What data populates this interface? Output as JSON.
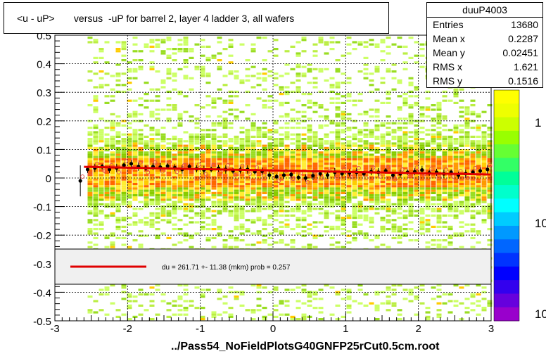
{
  "title": "<u - uP>       versus  -uP for barrel 2, layer 4 ladder 3, all wafers",
  "file_label": "../Pass54_NoFieldPlotsG40GNFP25rCut0.5cm.root",
  "stats": {
    "name": "duuP4003",
    "rows": [
      {
        "label": "Entries",
        "value": "13680"
      },
      {
        "label": "Mean x",
        "value": "0.2287"
      },
      {
        "label": "Mean y",
        "value": "0.02451"
      },
      {
        "label": "RMS x",
        "value": "1.621"
      },
      {
        "label": "RMS y",
        "value": "0.1516"
      }
    ]
  },
  "fit_legend": "du =  261.71 +- 11.38 (mkm) prob = 0.257",
  "colors": {
    "fit_line": "#e00000",
    "profile_points": "#000000",
    "open_markers": "#e05050"
  },
  "chart_data": {
    "type": "heatmap",
    "title": "<u - uP>       versus  -uP for barrel 2, layer 4 ladder 3, all wafers",
    "xlim": [
      -3,
      3
    ],
    "ylim": [
      -0.5,
      0.5
    ],
    "x_ticks": [
      -3,
      -2,
      -1,
      0,
      1,
      2,
      3
    ],
    "x_tick_labels": [
      "-3",
      "-2",
      "-1",
      "0",
      "1",
      "2",
      "3"
    ],
    "y_ticks": [
      -0.5,
      -0.4,
      -0.3,
      -0.2,
      -0.1,
      0,
      0.1,
      0.2,
      0.3,
      0.4,
      0.5
    ],
    "y_tick_labels": [
      "-0.5",
      "-0.4",
      "-0.3",
      "-0.2",
      "-0.1",
      "0",
      "0.1",
      "0.2",
      "0.3",
      "0.4",
      "0.5"
    ],
    "grid": true,
    "colorbar_labels": [
      "1",
      "10",
      "10"
    ],
    "fit": {
      "x": [
        -2.6,
        3.0
      ],
      "y": [
        0.039,
        0.012
      ]
    },
    "profile": {
      "x": [
        -2.65,
        -2.55,
        -2.45,
        -2.35,
        -2.25,
        -2.15,
        -2.05,
        -1.95,
        -1.85,
        -1.75,
        -1.65,
        -1.55,
        -1.45,
        -1.35,
        -1.25,
        -1.15,
        -1.05,
        -0.95,
        -0.85,
        -0.75,
        -0.65,
        -0.55,
        -0.45,
        -0.35,
        -0.25,
        -0.15,
        -0.05,
        0.05,
        0.15,
        0.25,
        0.35,
        0.45,
        0.55,
        0.65,
        0.75,
        0.85,
        0.95,
        1.05,
        1.15,
        1.25,
        1.35,
        1.45,
        1.55,
        1.65,
        1.75,
        1.85,
        1.95,
        2.05,
        2.15,
        2.25,
        2.35,
        2.45,
        2.55,
        2.65,
        2.75,
        2.85,
        2.95
      ],
      "y": [
        -0.01,
        0.03,
        0.035,
        0.04,
        0.03,
        0.035,
        0.045,
        0.05,
        0.04,
        0.035,
        0.04,
        0.038,
        0.042,
        0.036,
        0.03,
        0.04,
        0.032,
        0.028,
        0.03,
        0.034,
        0.03,
        0.025,
        0.028,
        0.03,
        0.022,
        0.024,
        0.01,
        0.005,
        0.01,
        0.012,
        0.002,
        0.0,
        0.008,
        0.015,
        0.01,
        0.02,
        0.015,
        0.018,
        0.02,
        0.015,
        0.022,
        0.02,
        0.025,
        0.01,
        0.015,
        0.02,
        0.022,
        0.028,
        0.018,
        0.02,
        0.015,
        0.02,
        0.01,
        0.015,
        0.02,
        0.025,
        0.03
      ]
    }
  }
}
